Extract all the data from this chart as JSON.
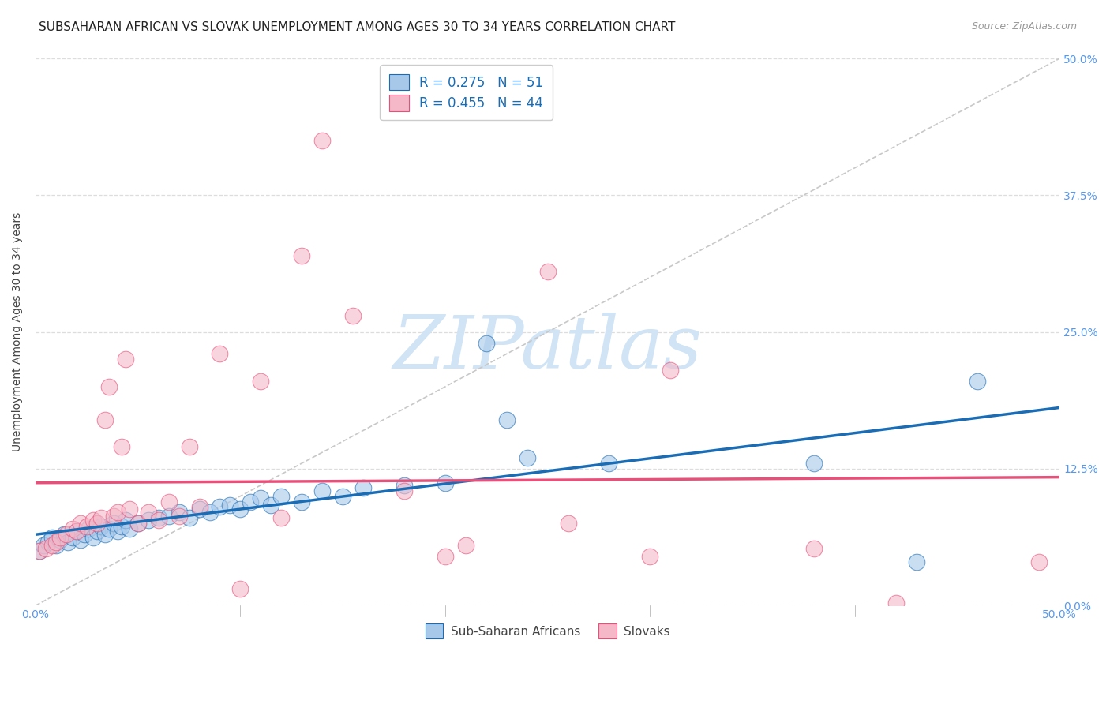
{
  "title": "SUBSAHARAN AFRICAN VS SLOVAK UNEMPLOYMENT AMONG AGES 30 TO 34 YEARS CORRELATION CHART",
  "source": "Source: ZipAtlas.com",
  "ylabel": "Unemployment Among Ages 30 to 34 years",
  "ytick_labels": [
    "0.0%",
    "12.5%",
    "25.0%",
    "37.5%",
    "50.0%"
  ],
  "ytick_values": [
    0.0,
    0.125,
    0.25,
    0.375,
    0.5
  ],
  "xtick_labels": [
    "0.0%",
    "",
    "",
    "",
    "",
    "50.0%"
  ],
  "xtick_values": [
    0.0,
    0.1,
    0.2,
    0.3,
    0.4,
    0.5
  ],
  "xlim": [
    0.0,
    0.5
  ],
  "ylim": [
    0.0,
    0.5
  ],
  "blue_color": "#a8c8ea",
  "pink_color": "#f4b8c8",
  "blue_line_color": "#1a6db5",
  "pink_line_color": "#e8507a",
  "dashed_line_color": "#c8c8c8",
  "watermark_text": "ZIPatlas",
  "watermark_color": "#d0e4f5",
  "legend_R_blue": "R = 0.275",
  "legend_N_blue": "N = 51",
  "legend_R_pink": "R = 0.455",
  "legend_N_pink": "N = 44",
  "legend_label_blue": "Sub-Saharan Africans",
  "legend_label_pink": "Slovaks",
  "blue_x": [
    0.002,
    0.004,
    0.006,
    0.008,
    0.01,
    0.012,
    0.014,
    0.016,
    0.018,
    0.02,
    0.022,
    0.024,
    0.026,
    0.028,
    0.03,
    0.032,
    0.034,
    0.036,
    0.038,
    0.04,
    0.042,
    0.044,
    0.046,
    0.05,
    0.055,
    0.06,
    0.065,
    0.07,
    0.075,
    0.08,
    0.085,
    0.09,
    0.095,
    0.1,
    0.105,
    0.11,
    0.115,
    0.12,
    0.13,
    0.14,
    0.15,
    0.16,
    0.18,
    0.2,
    0.22,
    0.23,
    0.24,
    0.28,
    0.38,
    0.43,
    0.46
  ],
  "blue_y": [
    0.05,
    0.055,
    0.058,
    0.062,
    0.055,
    0.06,
    0.065,
    0.058,
    0.062,
    0.068,
    0.06,
    0.065,
    0.07,
    0.062,
    0.068,
    0.072,
    0.065,
    0.07,
    0.075,
    0.068,
    0.072,
    0.078,
    0.07,
    0.075,
    0.078,
    0.08,
    0.082,
    0.085,
    0.08,
    0.088,
    0.085,
    0.09,
    0.092,
    0.088,
    0.095,
    0.098,
    0.092,
    0.1,
    0.095,
    0.105,
    0.1,
    0.108,
    0.11,
    0.112,
    0.24,
    0.17,
    0.135,
    0.13,
    0.13,
    0.04,
    0.205
  ],
  "pink_x": [
    0.002,
    0.005,
    0.008,
    0.01,
    0.012,
    0.015,
    0.018,
    0.02,
    0.022,
    0.025,
    0.028,
    0.03,
    0.032,
    0.034,
    0.036,
    0.038,
    0.04,
    0.042,
    0.044,
    0.046,
    0.05,
    0.055,
    0.06,
    0.065,
    0.07,
    0.075,
    0.08,
    0.09,
    0.1,
    0.11,
    0.12,
    0.13,
    0.14,
    0.155,
    0.18,
    0.2,
    0.21,
    0.25,
    0.26,
    0.3,
    0.31,
    0.38,
    0.42,
    0.49
  ],
  "pink_y": [
    0.05,
    0.052,
    0.055,
    0.058,
    0.062,
    0.065,
    0.07,
    0.068,
    0.075,
    0.072,
    0.078,
    0.075,
    0.08,
    0.17,
    0.2,
    0.082,
    0.085,
    0.145,
    0.225,
    0.088,
    0.075,
    0.085,
    0.078,
    0.095,
    0.082,
    0.145,
    0.09,
    0.23,
    0.015,
    0.205,
    0.08,
    0.32,
    0.425,
    0.265,
    0.105,
    0.045,
    0.055,
    0.305,
    0.075,
    0.045,
    0.215,
    0.052,
    0.002,
    0.04
  ],
  "background_color": "#ffffff",
  "grid_color": "#dddddd",
  "title_fontsize": 11,
  "axis_fontsize": 10,
  "tick_fontsize": 10,
  "tick_color": "#5599ee",
  "legend_text_color": "#1a6db5"
}
